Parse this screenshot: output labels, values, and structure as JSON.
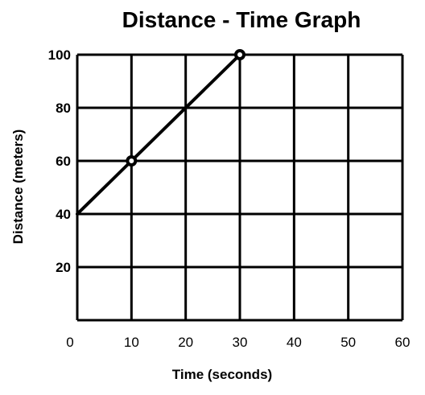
{
  "chart_data": {
    "type": "line",
    "title": "Distance - Time Graph",
    "xlabel": "Time (seconds)",
    "ylabel": "Distance (meters)",
    "xlim": [
      0,
      60
    ],
    "ylim": [
      0,
      100
    ],
    "x_ticks": [
      "0",
      "10",
      "20",
      "30",
      "40",
      "50",
      "60"
    ],
    "y_ticks": [
      "20",
      "40",
      "60",
      "80",
      "100"
    ],
    "grid": true,
    "series": [
      {
        "x": [
          0,
          10,
          30
        ],
        "y": [
          40,
          60,
          100
        ],
        "color": "#000000"
      }
    ],
    "marked_points": [
      {
        "x": 10,
        "y": 60
      },
      {
        "x": 30,
        "y": 100
      }
    ]
  }
}
